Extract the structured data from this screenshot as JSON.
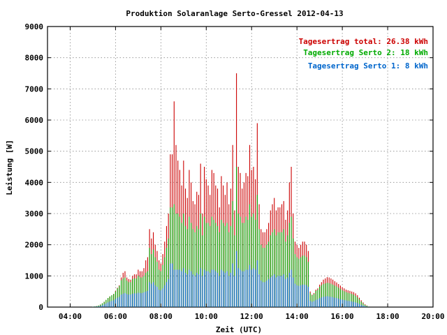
{
  "chart_data": {
    "type": "bar",
    "title": "Produktion Solaranlage Serto-Gressel 2012-04-13",
    "xlabel": "Zeit (UTC)",
    "ylabel": "Leistung [W]",
    "xlim_hours": [
      3,
      20
    ],
    "ylim": [
      0,
      9000
    ],
    "x_ticks": [
      {
        "h": 4,
        "label": "04:00"
      },
      {
        "h": 6,
        "label": "06:00"
      },
      {
        "h": 8,
        "label": "08:00"
      },
      {
        "h": 10,
        "label": "10:00"
      },
      {
        "h": 12,
        "label": "12:00"
      },
      {
        "h": 14,
        "label": "14:00"
      },
      {
        "h": 16,
        "label": "16:00"
      },
      {
        "h": 18,
        "label": "18:00"
      },
      {
        "h": 20,
        "label": "20:00"
      }
    ],
    "y_ticks": [
      0,
      1000,
      2000,
      3000,
      4000,
      5000,
      6000,
      7000,
      8000,
      9000
    ],
    "grid": true,
    "legend_position": "top-right",
    "colors": {
      "total": "#cc0000",
      "serto2": "#00aa00",
      "serto1": "#0066cc"
    },
    "legend": [
      {
        "label": "Tagesertrag total: 26.38 kWh",
        "color": "#cc0000"
      },
      {
        "label": "Tagesertrag Serto 2: 18 kWh",
        "color": "#00aa00"
      },
      {
        "label": "Tagesertrag Serto 1: 8 kWh",
        "color": "#0066cc"
      }
    ],
    "interval_minutes": 5,
    "start_time": "05:00",
    "series": [
      {
        "name": "total",
        "values": [
          10,
          20,
          30,
          50,
          80,
          120,
          170,
          230,
          290,
          340,
          380,
          420,
          520,
          620,
          700,
          950,
          1100,
          1150,
          950,
          900,
          880,
          1000,
          1050,
          1050,
          1200,
          1150,
          1150,
          1250,
          1500,
          1600,
          2500,
          2200,
          2400,
          2000,
          1800,
          1500,
          1400,
          1700,
          2100,
          2600,
          3000,
          4900,
          4900,
          6600,
          5200,
          4700,
          4400,
          3900,
          4700,
          3800,
          3500,
          4400,
          4000,
          3400,
          3300,
          3700,
          3600,
          4600,
          3000,
          4500,
          4100,
          3900,
          3600,
          4400,
          4300,
          3900,
          3800,
          3200,
          4200,
          3900,
          3600,
          4000,
          3300,
          3800,
          5200,
          3100,
          7500,
          4500,
          4300,
          3800,
          4000,
          4300,
          4200,
          5200,
          4400,
          4500,
          4100,
          5900,
          3300,
          2500,
          2400,
          2400,
          2500,
          2700,
          3100,
          3300,
          3500,
          3100,
          3200,
          3200,
          3300,
          3400,
          2800,
          3100,
          4000,
          4500,
          3000,
          2100,
          2000,
          1900,
          2000,
          2100,
          2100,
          2000,
          1800,
          500,
          400,
          450,
          560,
          600,
          720,
          800,
          880,
          920,
          960,
          950,
          920,
          880,
          830,
          790,
          740,
          690,
          640,
          600,
          560,
          540,
          520,
          500,
          480,
          440,
          380,
          300,
          220,
          150,
          90,
          50,
          20
        ]
      },
      {
        "name": "serto2",
        "values": [
          10,
          20,
          30,
          50,
          80,
          120,
          170,
          230,
          290,
          340,
          380,
          420,
          500,
          600,
          680,
          860,
          920,
          950,
          850,
          800,
          800,
          900,
          920,
          920,
          1000,
          950,
          950,
          1000,
          1100,
          1150,
          1900,
          1700,
          1850,
          1600,
          1450,
          1200,
          1150,
          1350,
          1600,
          1900,
          2200,
          3200,
          3200,
          3300,
          3000,
          3000,
          2900,
          2700,
          3000,
          2600,
          2500,
          2900,
          2700,
          2500,
          2400,
          2600,
          2500,
          3000,
          2300,
          2900,
          2700,
          2700,
          2600,
          2900,
          2800,
          2700,
          2600,
          2400,
          2800,
          2700,
          2600,
          2700,
          2400,
          2600,
          3400,
          2300,
          4500,
          3000,
          2900,
          2700,
          2700,
          2900,
          2800,
          3300,
          2900,
          3000,
          2800,
          3600,
          2500,
          2000,
          1900,
          1900,
          2000,
          2100,
          2300,
          2400,
          2500,
          2300,
          2400,
          2400,
          2400,
          2500,
          2100,
          2300,
          2700,
          2900,
          2200,
          1700,
          1600,
          1550,
          1600,
          1650,
          1650,
          1600,
          1450,
          450,
          380,
          420,
          520,
          560,
          650,
          700,
          740,
          760,
          780,
          770,
          750,
          720,
          690,
          660,
          620,
          580,
          540,
          510,
          480,
          460,
          440,
          420,
          400,
          360,
          310,
          250,
          180,
          120,
          70,
          40,
          15
        ]
      },
      {
        "name": "serto1",
        "values": [
          5,
          10,
          15,
          20,
          40,
          60,
          90,
          120,
          150,
          180,
          200,
          220,
          260,
          300,
          330,
          400,
          430,
          450,
          420,
          400,
          400,
          430,
          440,
          440,
          460,
          450,
          450,
          470,
          500,
          520,
          800,
          750,
          800,
          700,
          650,
          560,
          540,
          600,
          700,
          800,
          900,
          1400,
          1400,
          1200,
          1200,
          1200,
          1200,
          1150,
          1250,
          1100,
          1050,
          1200,
          1150,
          1050,
          1000,
          1100,
          1050,
          1250,
          1000,
          1200,
          1150,
          1150,
          1100,
          1200,
          1200,
          1150,
          1100,
          1000,
          1200,
          1150,
          1100,
          1150,
          1000,
          1100,
          1400,
          1000,
          1800,
          1250,
          1200,
          1150,
          1150,
          1200,
          1200,
          1350,
          1200,
          1250,
          1200,
          1500,
          1050,
          850,
          800,
          800,
          850,
          900,
          950,
          1000,
          1050,
          950,
          1000,
          1000,
          1000,
          1050,
          900,
          950,
          1100,
          1200,
          950,
          750,
          700,
          680,
          700,
          720,
          720,
          700,
          650,
          200,
          170,
          190,
          230,
          250,
          290,
          310,
          330,
          340,
          350,
          340,
          330,
          320,
          300,
          290,
          270,
          250,
          240,
          225,
          210,
          200,
          190,
          180,
          170,
          150,
          130,
          100,
          75,
          50,
          30,
          15,
          8
        ]
      }
    ]
  }
}
